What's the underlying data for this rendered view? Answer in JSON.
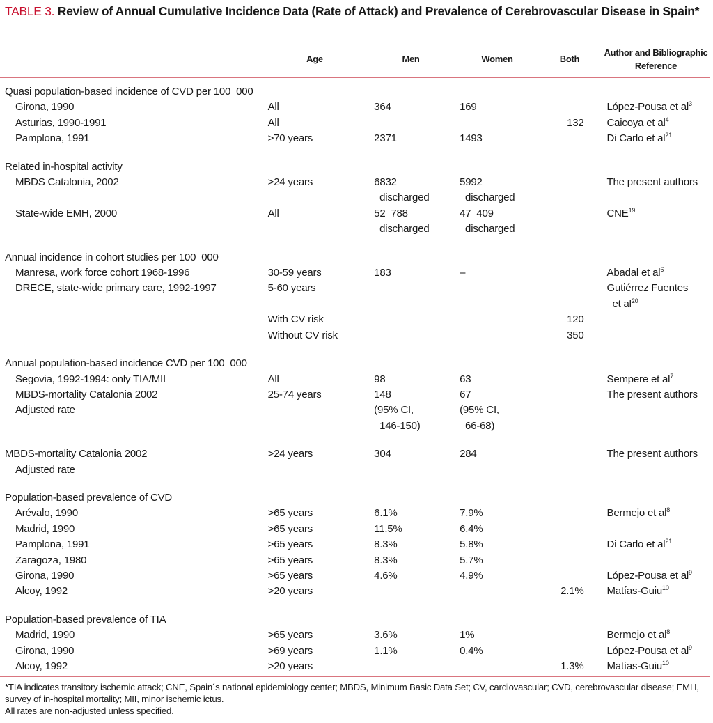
{
  "title": {
    "label": "TABLE 3.",
    "text": " Review of Annual Cumulative Incidence Data (Rate of Attack) and Prevalence of Cerebrovascular Disease in Spain*"
  },
  "columns": {
    "age": "Age",
    "men": "Men",
    "women": "Women",
    "both": "Both",
    "ref": "Author and Bibliographic Reference"
  },
  "rows": [
    {
      "label": "Quasi population-based incidence of CVD per 100  000",
      "indent": false
    },
    {
      "label": "Girona, 1990",
      "indent": true,
      "age": "All",
      "men": "364",
      "women": "169",
      "ref": "López-Pousa et al",
      "sup": "3"
    },
    {
      "label": "Asturias, 1990-1991",
      "indent": true,
      "age": "All",
      "both": "132",
      "ref": "Caicoya et al",
      "sup": "4"
    },
    {
      "label": "Pamplona, 1991",
      "indent": true,
      "age": ">70 years",
      "men": "2371",
      "women": "1493",
      "ref": "Di Carlo et al",
      "sup": "21"
    },
    {
      "spacer": true
    },
    {
      "label": "Related in-hospital activity",
      "indent": false
    },
    {
      "label": "MBDS Catalonia, 2002",
      "indent": true,
      "age": ">24 years",
      "men": "6832\n  discharged",
      "women": "5992\n  discharged",
      "ref": "The present authors"
    },
    {
      "label": "State-wide EMH, 2000",
      "indent": true,
      "age": "All",
      "men": "52  788\n  discharged",
      "women": "47  409\n  discharged",
      "ref": "CNE",
      "sup": "19"
    },
    {
      "spacer": true
    },
    {
      "label": "Annual incidence in cohort studies per 100  000",
      "indent": false
    },
    {
      "label": "Manresa, work force cohort 1968-1996",
      "indent": true,
      "age": "30-59 years",
      "men": "183",
      "women": "–",
      "ref": "Abadal et al",
      "sup": "6"
    },
    {
      "label": "DRECE, state-wide primary care, 1992-1997",
      "indent": true,
      "age": "5-60 years",
      "ref": "Gutiérrez Fuentes\n  et al",
      "sup": "20"
    },
    {
      "label": "",
      "indent": true,
      "age": "With CV risk",
      "both": "120"
    },
    {
      "label": "",
      "indent": true,
      "age": "Without CV risk",
      "both": "350"
    },
    {
      "spacer": true
    },
    {
      "label": "Annual population-based incidence CVD per 100  000",
      "indent": false
    },
    {
      "label": "Segovia, 1992-1994: only TIA/MII",
      "indent": true,
      "age": "All",
      "men": "98",
      "women": "63",
      "ref": "Sempere et al",
      "sup": "7"
    },
    {
      "label": "MBDS-mortality Catalonia 2002",
      "indent": true,
      "age": "25-74 years",
      "men": "148",
      "women": "67",
      "ref": "The present authors"
    },
    {
      "label": "Adjusted rate",
      "indent": true,
      "men": "(95% CI,\n  146-150)",
      "women": "(95% CI,\n  66-68)"
    },
    {
      "spacer": true
    },
    {
      "label": "MBDS-mortality Catalonia 2002",
      "indent": false,
      "age": ">24 years",
      "men": "304",
      "women": "284",
      "ref": "The present authors"
    },
    {
      "label": "Adjusted rate",
      "indent": true
    },
    {
      "spacer": true
    },
    {
      "label": "Population-based prevalence of CVD",
      "indent": false
    },
    {
      "label": "Arévalo, 1990",
      "indent": true,
      "age": ">65 years",
      "men": "6.1%",
      "women": "7.9%",
      "ref": "Bermejo et al",
      "sup": "8"
    },
    {
      "label": "Madrid, 1990",
      "indent": true,
      "age": ">65 years",
      "men": "11.5%",
      "women": "6.4%"
    },
    {
      "label": "Pamplona, 1991",
      "indent": true,
      "age": ">65 years",
      "men": "8.3%",
      "women": "5.8%",
      "ref": "Di Carlo et al",
      "sup": "21"
    },
    {
      "label": "Zaragoza, 1980",
      "indent": true,
      "age": ">65 years",
      "men": "8.3%",
      "women": "5.7%"
    },
    {
      "label": "Girona, 1990",
      "indent": true,
      "age": ">65 years",
      "men": "4.6%",
      "women": "4.9%",
      "ref": "López-Pousa et al",
      "sup": "9"
    },
    {
      "label": "Alcoy, 1992",
      "indent": true,
      "age": ">20 years",
      "both": "2.1%",
      "ref": "Matías-Guiu",
      "sup": "10"
    },
    {
      "spacer": true
    },
    {
      "label": "Population-based prevalence of TIA",
      "indent": false
    },
    {
      "label": "Madrid, 1990",
      "indent": true,
      "age": ">65 years",
      "men": "3.6%",
      "women": "1%",
      "ref": "Bermejo et al",
      "sup": "8"
    },
    {
      "label": "Girona, 1990",
      "indent": true,
      "age": ">69 years",
      "men": "1.1%",
      "women": "0.4%",
      "ref": "López-Pousa et al",
      "sup": "9"
    },
    {
      "label": "Alcoy, 1992",
      "indent": true,
      "age": ">20 years",
      "both": "1.3%",
      "ref": "Matías-Guiu",
      "sup": "10"
    }
  ],
  "footnote": {
    "line1": "*TIA indicates transitory ischemic attack; CNE, Spain´s national epidemiology center; MBDS, Minimum Basic Data Set; CV, cardiovascular; CVD, cerebrovascular disease; EMH, survey of in-hospital mortality; MII, minor ischemic ictus.",
    "line2": "All rates are non-adjusted unless specified."
  },
  "colors": {
    "accent": "#c8102e",
    "rule": "#d9757f"
  }
}
